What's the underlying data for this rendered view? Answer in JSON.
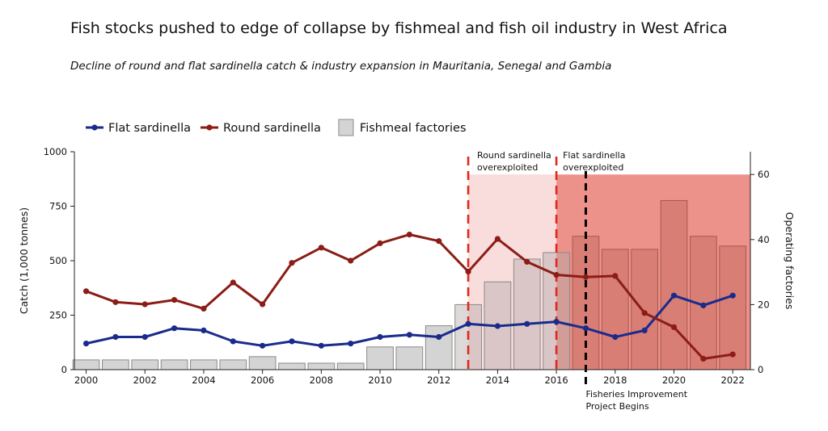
{
  "title": "Fish stocks pushed to edge of collapse by fishmeal and fish oil industry in West Africa",
  "subtitle": "Decline of round and flat sardinella catch & industry expansion in Mauritania, Senegal and Gambia",
  "chart_data": {
    "type": "line",
    "x": [
      2000,
      2001,
      2002,
      2003,
      2004,
      2005,
      2006,
      2007,
      2008,
      2009,
      2010,
      2011,
      2012,
      2013,
      2014,
      2015,
      2016,
      2017,
      2018,
      2019,
      2020,
      2021,
      2022
    ],
    "xticks": [
      "2000",
      "2002",
      "2004",
      "2006",
      "2008",
      "2010",
      "2012",
      "2014",
      "2016",
      "2018",
      "2020",
      "2022"
    ],
    "xlim": [
      1999.6,
      2022.6
    ],
    "ylabel": "Catch (1,000 tonnes)",
    "ylim": [
      0,
      1000
    ],
    "yticks": [
      "0",
      "250",
      "500",
      "750",
      "1000"
    ],
    "y2label": "Operating factories",
    "y2lim": [
      0,
      67
    ],
    "y2ticks": [
      "0",
      "20",
      "40",
      "60"
    ],
    "grid": false,
    "legend_position": "top-left",
    "series": [
      {
        "name": "Flat sardinella",
        "type": "line",
        "axis": "left",
        "color": "#1a2b8c",
        "values": [
          120,
          150,
          150,
          190,
          180,
          130,
          110,
          130,
          110,
          120,
          150,
          160,
          150,
          210,
          200,
          210,
          220,
          190,
          150,
          180,
          340,
          295,
          340
        ]
      },
      {
        "name": "Round sardinella",
        "type": "line",
        "axis": "left",
        "color": "#8b1d16",
        "values": [
          360,
          310,
          300,
          320,
          280,
          400,
          300,
          490,
          560,
          500,
          580,
          620,
          590,
          450,
          600,
          495,
          435,
          425,
          430,
          260,
          195,
          50,
          70
        ]
      },
      {
        "name": "Fishmeal factories",
        "type": "bar",
        "axis": "right",
        "color": "#d4d4d4",
        "values": [
          3,
          3,
          3,
          3,
          3,
          3,
          4,
          2,
          2,
          2,
          7,
          7,
          13.5,
          20,
          27,
          34,
          36,
          41,
          37,
          37,
          52,
          41,
          38
        ]
      }
    ],
    "annotations": [
      {
        "kind": "vline",
        "x": 2013,
        "style": "dashed",
        "color": "#e0281c",
        "label_lines": [
          "Round sardinella",
          "overexploited"
        ]
      },
      {
        "kind": "vline",
        "x": 2016,
        "style": "dashed",
        "color": "#e0281c",
        "label_lines": [
          "Flat sardinella",
          "overexploited"
        ]
      },
      {
        "kind": "vline",
        "x": 2017,
        "style": "dashed",
        "color": "#000000",
        "label_lines": [
          "Fisheries Improvement",
          "Project Begins"
        ]
      }
    ],
    "shaded_regions": [
      {
        "from": 2013,
        "to": 2016,
        "upto_y2": 60,
        "color": "#f9dcdc"
      },
      {
        "from": 2016,
        "to": 2022.6,
        "upto_y2": 60,
        "color": "#ec928b"
      }
    ]
  }
}
